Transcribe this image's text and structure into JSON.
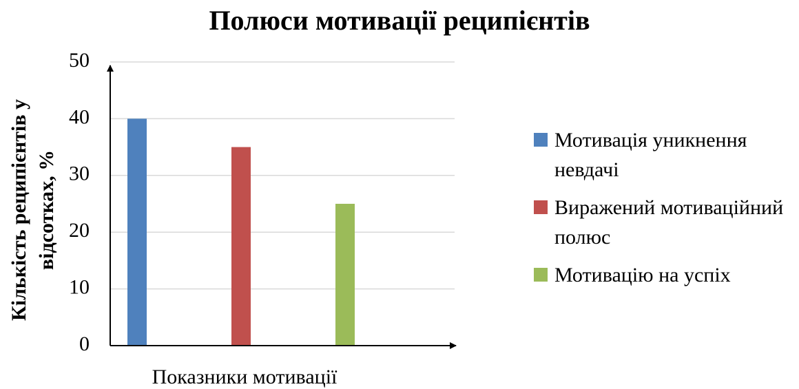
{
  "chart_data": {
    "type": "bar",
    "title": "Полюси мотивації реципієнтів",
    "xlabel": "Показники мотивації",
    "ylabel": [
      "Кількість реципієнтів у",
      "відсотках, %"
    ],
    "categories": [
      null
    ],
    "series": [
      {
        "name": "Мотивація уникнення невдачі",
        "color": "#4f81bd",
        "values": [
          40
        ]
      },
      {
        "name": "Виражений мотиваційний полюс",
        "color": "#c0504d",
        "values": [
          35
        ]
      },
      {
        "name": "Мотивацію на успіх",
        "color": "#9bbb59",
        "values": [
          25
        ]
      }
    ],
    "ylim": [
      0,
      50
    ],
    "yticks": [
      0,
      10,
      20,
      30,
      40,
      50
    ],
    "grid": true,
    "legend": "right"
  }
}
